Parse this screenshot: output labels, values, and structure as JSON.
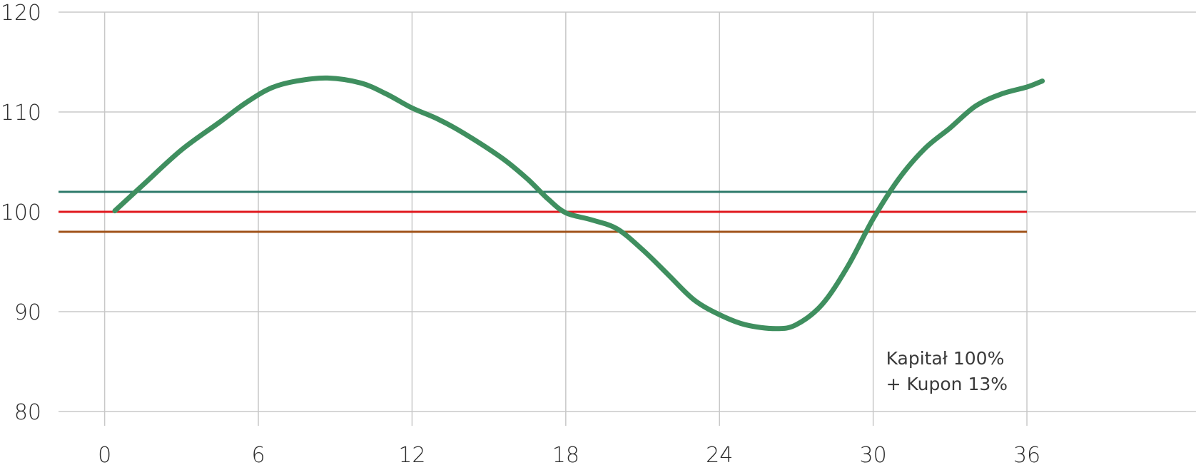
{
  "chart_data": {
    "type": "line",
    "title": "",
    "xlabel": "",
    "ylabel": "",
    "xlim": [
      -1.8,
      42.6
    ],
    "ylim": [
      80,
      120
    ],
    "x_ticks": [
      0,
      6,
      12,
      18,
      24,
      30,
      36
    ],
    "y_ticks": [
      80,
      90,
      100,
      110,
      120
    ],
    "grid": true,
    "series": [
      {
        "color": "#3f8f5f",
        "x": [
          0.4,
          1.5,
          3.0,
          4.5,
          5.5,
          6.5,
          7.5,
          8.7,
          10.0,
          11.0,
          12.0,
          13.0,
          14.0,
          15.5,
          16.5,
          17.3,
          18.0,
          19.0,
          20.0,
          21.0,
          22.0,
          23.0,
          24.0,
          25.0,
          26.2,
          27.0,
          28.0,
          29.0,
          30.0,
          31.0,
          32.0,
          33.0,
          34.0,
          35.0,
          36.0,
          36.6
        ],
        "values": [
          100.1,
          102.7,
          106.2,
          109.0,
          110.9,
          112.4,
          113.1,
          113.4,
          112.9,
          111.8,
          110.4,
          109.3,
          107.9,
          105.4,
          103.3,
          101.3,
          99.9,
          99.2,
          98.3,
          96.2,
          93.7,
          91.2,
          89.7,
          88.7,
          88.3,
          88.7,
          90.7,
          94.5,
          99.3,
          103.3,
          106.3,
          108.4,
          110.6,
          111.8,
          112.5,
          113.1
        ]
      }
    ],
    "reference_lines": [
      {
        "value": 102,
        "color": "#2d7a6a",
        "x_end": 36
      },
      {
        "value": 100,
        "color": "#e0181e",
        "x_end": 36
      },
      {
        "value": 98,
        "color": "#a0531a",
        "x_end": 36
      }
    ],
    "annotation": {
      "lines": [
        "Kapitał 100%",
        "+ Kupon 13%"
      ],
      "x": 30.5,
      "y": 84.7
    }
  }
}
